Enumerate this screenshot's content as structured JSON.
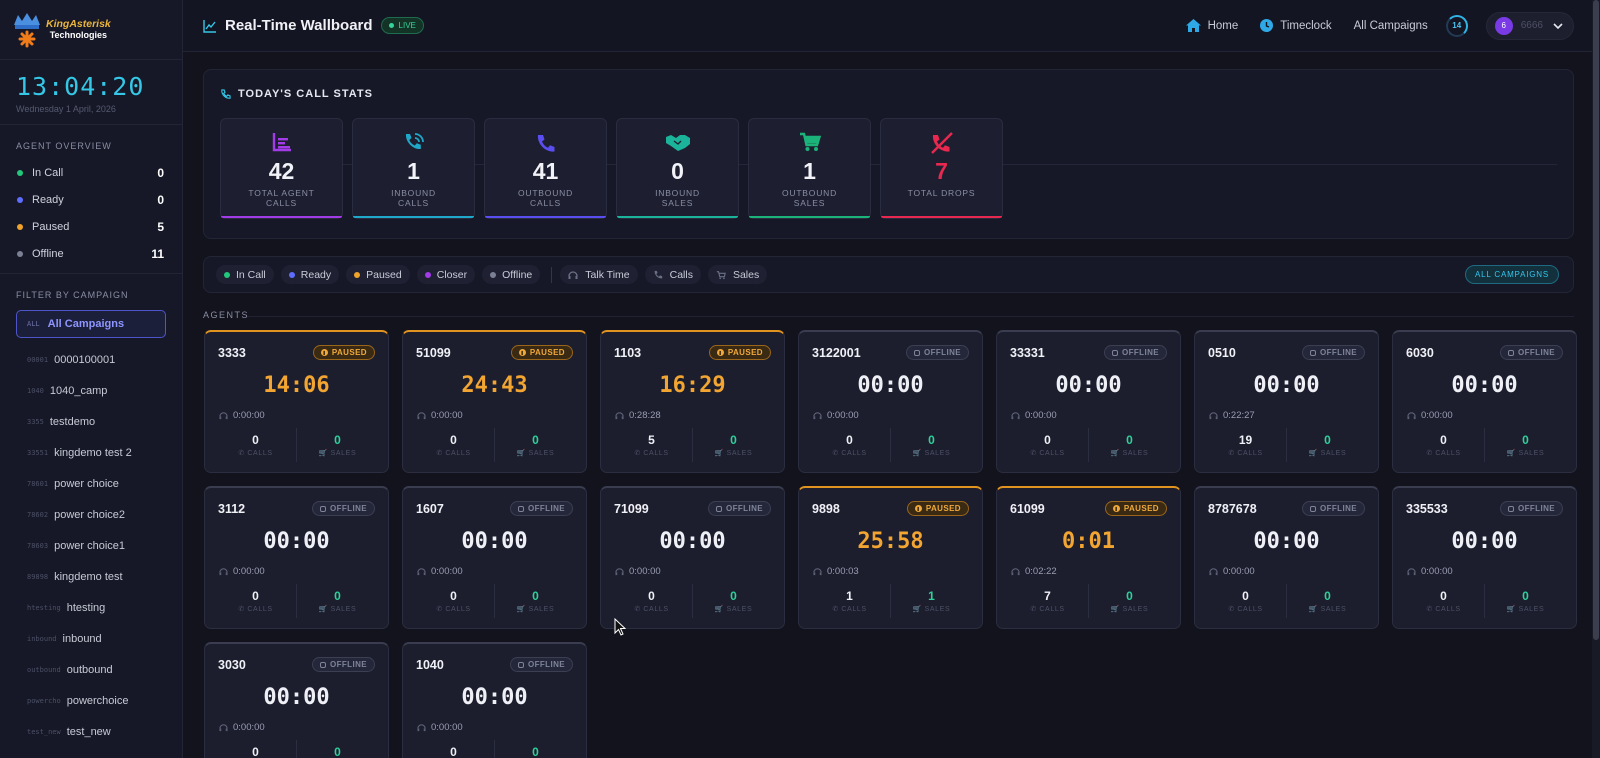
{
  "brand": {
    "name": "KingAsterisk",
    "sub": "Technologies"
  },
  "header": {
    "title": "Real-Time Wallboard",
    "live": "LIVE",
    "nav": {
      "home": "Home",
      "timeclock": "Timeclock",
      "campaigns": "All Campaigns"
    },
    "refresh_count": "14",
    "user": {
      "initial": "6",
      "name": "6666"
    }
  },
  "sidebar": {
    "clock": "13:04:20",
    "date": "Wednesday 1 April, 2026",
    "overview_title": "AGENT OVERVIEW",
    "overview": [
      {
        "label": "In Call",
        "count": "0",
        "color": "#21c77a"
      },
      {
        "label": "Ready",
        "count": "0",
        "color": "#5f6dff"
      },
      {
        "label": "Paused",
        "count": "5",
        "color": "#f0a329"
      },
      {
        "label": "Offline",
        "count": "11",
        "color": "#7c8094"
      }
    ],
    "filter_title": "FILTER BY CAMPAIGN",
    "all_campaigns": {
      "code": "ALL",
      "label": "All Campaigns"
    },
    "campaigns": [
      {
        "code": "00001",
        "label": "0000100001"
      },
      {
        "code": "1040",
        "label": "1040_camp"
      },
      {
        "code": "3355",
        "label": "testdemo"
      },
      {
        "code": "33551",
        "label": "kingdemo test 2"
      },
      {
        "code": "78601",
        "label": "power choice"
      },
      {
        "code": "78602",
        "label": "power choice2"
      },
      {
        "code": "78603",
        "label": "power choice1"
      },
      {
        "code": "89898",
        "label": "kingdemo test"
      },
      {
        "code": "htesting",
        "label": "htesting"
      },
      {
        "code": "inbound",
        "label": "inbound"
      },
      {
        "code": "outbound",
        "label": "outbound"
      },
      {
        "code": "powercho",
        "label": "powerchoice"
      },
      {
        "code": "test_new",
        "label": "test_new"
      }
    ]
  },
  "stats": {
    "title": "TODAY'S CALL STATS",
    "items": [
      {
        "value": "42",
        "label": "TOTAL AGENT CALLS",
        "icon": "chart-icon",
        "color": "#a23be8"
      },
      {
        "value": "1",
        "label": "INBOUND CALLS",
        "icon": "phone-incoming-icon",
        "color": "#1fa8c9"
      },
      {
        "value": "41",
        "label": "OUTBOUND CALLS",
        "icon": "phone-icon",
        "color": "#5b4ef0"
      },
      {
        "value": "0",
        "label": "INBOUND SALES",
        "icon": "handshake-icon",
        "color": "#1bb39a"
      },
      {
        "value": "1",
        "label": "OUTBOUND SALES",
        "icon": "cart-icon",
        "color": "#1bb37a"
      },
      {
        "value": "7",
        "label": "TOTAL DROPS",
        "icon": "phone-slash-icon",
        "color": "#e8284f"
      }
    ]
  },
  "legend": {
    "statuses": [
      {
        "label": "In Call",
        "color": "#21c77a"
      },
      {
        "label": "Ready",
        "color": "#5f6dff"
      },
      {
        "label": "Paused",
        "color": "#f0a329"
      },
      {
        "label": "Closer",
        "color": "#a23be8"
      },
      {
        "label": "Offline",
        "color": "#7c8094"
      }
    ],
    "metrics": [
      "Talk Time",
      "Calls",
      "Sales"
    ],
    "all_campaigns": "ALL CAMPAIGNS"
  },
  "agents_title": "AGENTS",
  "agent_labels": {
    "calls": "CALLS",
    "sales": "SALES"
  },
  "agents": [
    {
      "ext": "3333",
      "status": "PAUSED",
      "timer": "14:06",
      "talk": "0:00:00",
      "calls": "0",
      "sales": "0"
    },
    {
      "ext": "51099",
      "status": "PAUSED",
      "timer": "24:43",
      "talk": "0:00:00",
      "calls": "0",
      "sales": "0"
    },
    {
      "ext": "1103",
      "status": "PAUSED",
      "timer": "16:29",
      "talk": "0:28:28",
      "calls": "5",
      "sales": "0"
    },
    {
      "ext": "3122001",
      "status": "OFFLINE",
      "timer": "00:00",
      "talk": "0:00:00",
      "calls": "0",
      "sales": "0"
    },
    {
      "ext": "33331",
      "status": "OFFLINE",
      "timer": "00:00",
      "talk": "0:00:00",
      "calls": "0",
      "sales": "0"
    },
    {
      "ext": "0510",
      "status": "OFFLINE",
      "timer": "00:00",
      "talk": "0:22:27",
      "calls": "19",
      "sales": "0"
    },
    {
      "ext": "6030",
      "status": "OFFLINE",
      "timer": "00:00",
      "talk": "0:00:00",
      "calls": "0",
      "sales": "0"
    },
    {
      "ext": "3112",
      "status": "OFFLINE",
      "timer": "00:00",
      "talk": "0:00:00",
      "calls": "0",
      "sales": "0"
    },
    {
      "ext": "1607",
      "status": "OFFLINE",
      "timer": "00:00",
      "talk": "0:00:00",
      "calls": "0",
      "sales": "0"
    },
    {
      "ext": "71099",
      "status": "OFFLINE",
      "timer": "00:00",
      "talk": "0:00:00",
      "calls": "0",
      "sales": "0"
    },
    {
      "ext": "9898",
      "status": "PAUSED",
      "timer": "25:58",
      "talk": "0:00:03",
      "calls": "1",
      "sales": "1"
    },
    {
      "ext": "61099",
      "status": "PAUSED",
      "timer": "0:01",
      "talk": "0:02:22",
      "calls": "7",
      "sales": "0"
    },
    {
      "ext": "8787678",
      "status": "OFFLINE",
      "timer": "00:00",
      "talk": "0:00:00",
      "calls": "0",
      "sales": "0"
    },
    {
      "ext": "335533",
      "status": "OFFLINE",
      "timer": "00:00",
      "talk": "0:00:00",
      "calls": "0",
      "sales": "0"
    },
    {
      "ext": "3030",
      "status": "OFFLINE",
      "timer": "00:00",
      "talk": "0:00:00",
      "calls": "0",
      "sales": "0"
    },
    {
      "ext": "1040",
      "status": "OFFLINE",
      "timer": "00:00",
      "talk": "0:00:00",
      "calls": "0",
      "sales": "0"
    }
  ]
}
